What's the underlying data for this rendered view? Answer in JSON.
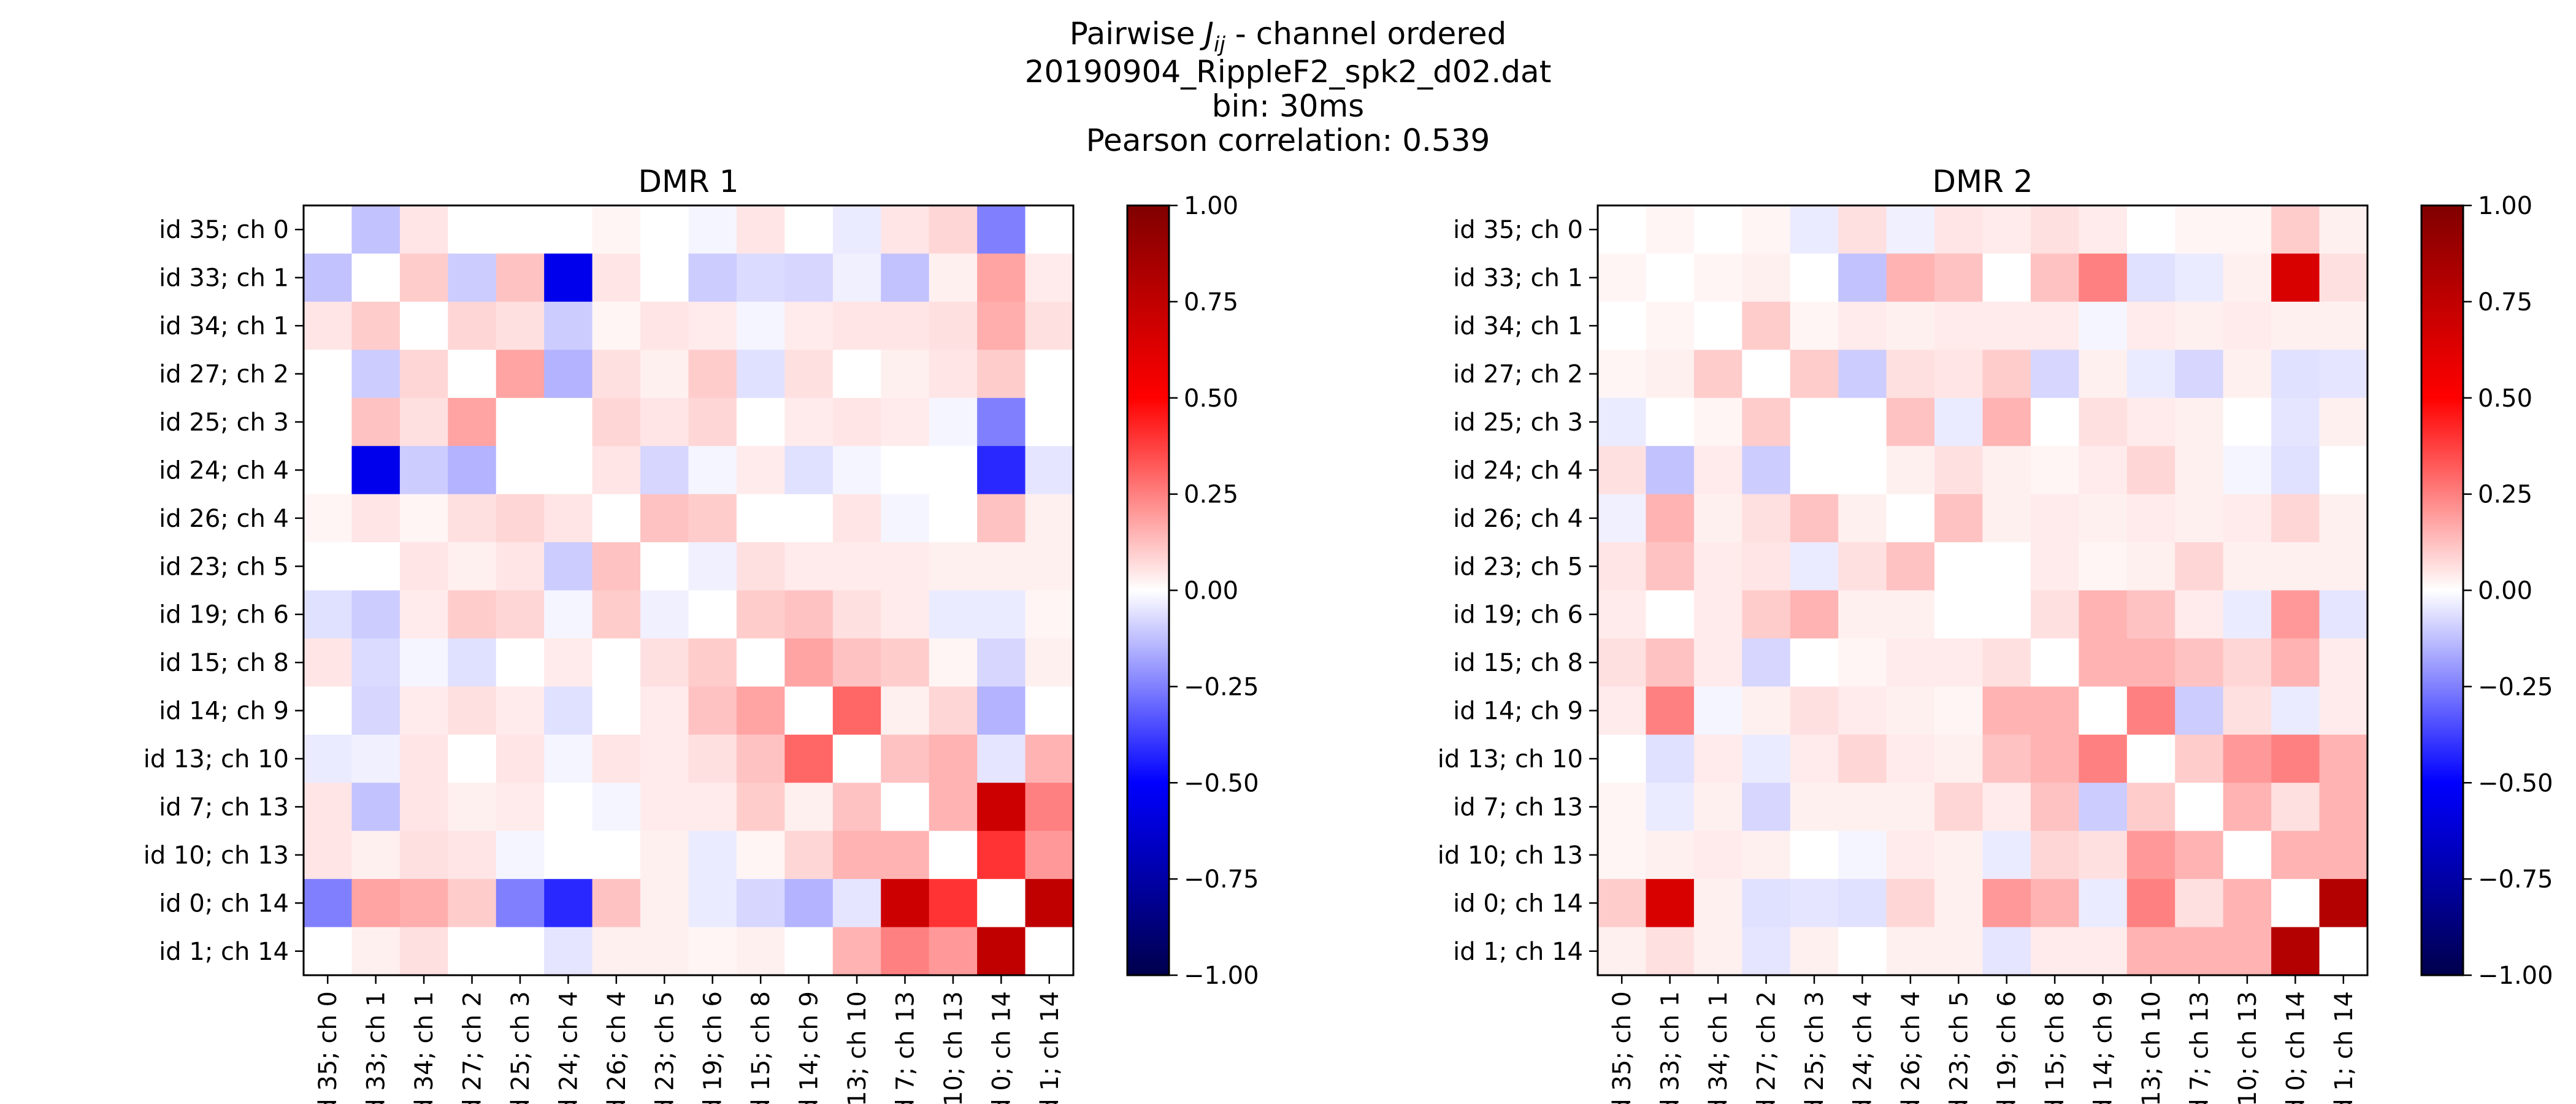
{
  "figure": {
    "title_prefix": "Pairwise ",
    "title_symbol": "J",
    "title_subscript": "ij",
    "title_suffix": " - channel ordered",
    "file": "20190904_RippleF2_spk2_d02.dat",
    "bin": "bin: 30ms",
    "pearson": "Pearson correlation: 0.539"
  },
  "colors": {
    "min": "#00004c",
    "low": "#0000ff",
    "mid": "#ffffff",
    "high": "#ff0000",
    "max": "#800000"
  },
  "chart_data": [
    {
      "type": "heatmap",
      "title": "DMR 1",
      "labels": [
        "id 35; ch 0",
        "id 33; ch 1",
        "id 34; ch 1",
        "id 27; ch 2",
        "id 25; ch 3",
        "id 24; ch 4",
        "id 26; ch 4",
        "id 23; ch 5",
        "id 19; ch 6",
        "id 15; ch 8",
        "id 14; ch 9",
        "id 13; ch 10",
        "id 7; ch 13",
        "id 10; ch 13",
        "id 0; ch 14",
        "id 1; ch 14"
      ],
      "value_range": [
        -1.0,
        1.0
      ],
      "colorbar_ticks": [
        "1.00",
        "0.75",
        "0.50",
        "0.25",
        "0.00",
        "−0.25",
        "−0.50",
        "−0.75",
        "−1.00"
      ],
      "matrix": [
        [
          0.0,
          -0.12,
          0.05,
          0.0,
          0.0,
          0.0,
          0.02,
          0.0,
          -0.02,
          0.05,
          0.0,
          -0.04,
          0.05,
          0.08,
          -0.25,
          0.0
        ],
        [
          -0.12,
          0.0,
          0.1,
          -0.1,
          0.12,
          -0.55,
          0.05,
          0.0,
          -0.1,
          -0.07,
          -0.08,
          -0.03,
          -0.12,
          0.03,
          0.18,
          0.04
        ],
        [
          0.05,
          0.1,
          0.0,
          0.08,
          0.06,
          -0.1,
          0.02,
          0.05,
          0.04,
          -0.02,
          0.04,
          0.05,
          0.05,
          0.06,
          0.16,
          0.06
        ],
        [
          0.0,
          -0.1,
          0.08,
          0.0,
          0.18,
          -0.15,
          0.06,
          0.03,
          0.1,
          -0.06,
          0.06,
          0.0,
          0.03,
          0.05,
          0.1,
          0.0
        ],
        [
          0.0,
          0.12,
          0.06,
          0.18,
          0.0,
          0.0,
          0.08,
          0.05,
          0.08,
          0.0,
          0.04,
          0.05,
          0.04,
          -0.02,
          -0.25,
          0.0
        ],
        [
          0.0,
          -0.55,
          -0.1,
          -0.15,
          0.0,
          0.0,
          0.05,
          -0.08,
          -0.02,
          0.04,
          -0.06,
          -0.02,
          0.0,
          0.0,
          -0.42,
          -0.05
        ],
        [
          0.02,
          0.05,
          0.02,
          0.06,
          0.08,
          0.05,
          0.0,
          0.12,
          0.1,
          0.0,
          0.0,
          0.05,
          -0.02,
          0.0,
          0.12,
          0.03
        ],
        [
          0.0,
          0.0,
          0.05,
          0.03,
          0.05,
          -0.1,
          0.12,
          0.0,
          -0.03,
          0.06,
          0.04,
          0.04,
          0.04,
          0.03,
          0.03,
          0.03
        ],
        [
          -0.06,
          -0.1,
          0.04,
          0.1,
          0.08,
          -0.02,
          0.1,
          -0.03,
          0.0,
          0.1,
          0.12,
          0.06,
          0.04,
          -0.04,
          -0.04,
          0.02
        ],
        [
          0.05,
          -0.07,
          -0.02,
          -0.06,
          0.0,
          0.04,
          0.0,
          0.06,
          0.1,
          0.0,
          0.18,
          0.12,
          0.1,
          0.02,
          -0.08,
          0.03
        ],
        [
          0.0,
          -0.08,
          0.04,
          0.06,
          0.04,
          -0.06,
          0.0,
          0.04,
          0.12,
          0.18,
          0.0,
          0.3,
          0.03,
          0.08,
          -0.15,
          0.0
        ],
        [
          -0.04,
          -0.03,
          0.05,
          0.0,
          0.05,
          -0.02,
          0.05,
          0.04,
          0.06,
          0.12,
          0.3,
          0.0,
          0.12,
          0.15,
          -0.05,
          0.15
        ],
        [
          0.05,
          -0.12,
          0.05,
          0.03,
          0.04,
          0.0,
          -0.02,
          0.04,
          0.04,
          0.1,
          0.03,
          0.12,
          0.0,
          0.15,
          0.7,
          0.25
        ],
        [
          0.05,
          0.03,
          0.06,
          0.05,
          -0.02,
          0.0,
          0.0,
          0.03,
          -0.04,
          0.02,
          0.08,
          0.15,
          0.15,
          0.0,
          0.4,
          0.2
        ],
        [
          -0.25,
          0.18,
          0.16,
          0.1,
          -0.25,
          -0.42,
          0.12,
          0.03,
          -0.04,
          -0.08,
          -0.15,
          -0.05,
          0.7,
          0.4,
          0.0,
          0.75
        ],
        [
          0.0,
          0.03,
          0.06,
          0.0,
          0.0,
          -0.05,
          0.03,
          0.03,
          0.02,
          0.03,
          0.0,
          0.15,
          0.25,
          0.2,
          0.75,
          0.0
        ]
      ]
    },
    {
      "type": "heatmap",
      "title": "DMR 2",
      "labels": [
        "id 35; ch 0",
        "id 33; ch 1",
        "id 34; ch 1",
        "id 27; ch 2",
        "id 25; ch 3",
        "id 24; ch 4",
        "id 26; ch 4",
        "id 23; ch 5",
        "id 19; ch 6",
        "id 15; ch 8",
        "id 14; ch 9",
        "id 13; ch 10",
        "id 7; ch 13",
        "id 10; ch 13",
        "id 0; ch 14",
        "id 1; ch 14"
      ],
      "value_range": [
        -1.0,
        1.0
      ],
      "colorbar_ticks": [
        "1.00",
        "0.75",
        "0.50",
        "0.25",
        "0.00",
        "−0.25",
        "−0.50",
        "−0.75",
        "−1.00"
      ],
      "matrix": [
        [
          0.0,
          0.02,
          0.0,
          0.02,
          -0.04,
          0.06,
          -0.03,
          0.05,
          0.04,
          0.06,
          0.04,
          0.0,
          0.02,
          0.02,
          0.1,
          0.03
        ],
        [
          0.02,
          0.0,
          0.02,
          0.03,
          0.0,
          -0.12,
          0.15,
          0.12,
          0.0,
          0.12,
          0.25,
          -0.06,
          -0.04,
          0.03,
          0.65,
          0.06
        ],
        [
          0.0,
          0.02,
          0.0,
          0.1,
          0.02,
          0.04,
          0.03,
          0.04,
          0.04,
          0.04,
          -0.02,
          0.04,
          0.03,
          0.04,
          0.03,
          0.03
        ],
        [
          0.02,
          0.03,
          0.1,
          0.0,
          0.1,
          -0.1,
          0.06,
          0.05,
          0.1,
          -0.08,
          0.03,
          -0.04,
          -0.08,
          0.03,
          -0.06,
          -0.05
        ],
        [
          -0.04,
          0.0,
          0.02,
          0.1,
          0.0,
          0.0,
          0.12,
          -0.04,
          0.15,
          0.0,
          0.06,
          0.04,
          0.03,
          0.0,
          -0.05,
          0.03
        ],
        [
          0.06,
          -0.12,
          0.04,
          -0.1,
          0.0,
          0.0,
          0.03,
          0.06,
          0.03,
          0.02,
          0.04,
          0.08,
          0.03,
          -0.02,
          -0.06,
          0.0
        ],
        [
          -0.03,
          0.15,
          0.03,
          0.06,
          0.12,
          0.03,
          0.0,
          0.12,
          0.03,
          0.04,
          0.03,
          0.04,
          0.03,
          0.04,
          0.08,
          0.03
        ],
        [
          0.05,
          0.12,
          0.04,
          0.05,
          -0.04,
          0.06,
          0.12,
          0.0,
          0.0,
          0.04,
          0.02,
          0.03,
          0.08,
          0.03,
          0.03,
          0.03
        ],
        [
          0.04,
          0.0,
          0.04,
          0.1,
          0.15,
          0.03,
          0.03,
          0.0,
          0.0,
          0.06,
          0.15,
          0.12,
          0.04,
          -0.04,
          0.2,
          -0.05
        ],
        [
          0.06,
          0.12,
          0.04,
          -0.08,
          0.0,
          0.02,
          0.04,
          0.04,
          0.06,
          0.0,
          0.15,
          0.15,
          0.12,
          0.08,
          0.15,
          0.04
        ],
        [
          0.04,
          0.25,
          -0.02,
          0.03,
          0.06,
          0.04,
          0.03,
          0.02,
          0.15,
          0.15,
          0.0,
          0.25,
          -0.1,
          0.06,
          -0.04,
          0.04
        ],
        [
          0.0,
          -0.06,
          0.04,
          -0.04,
          0.04,
          0.08,
          0.04,
          0.03,
          0.12,
          0.15,
          0.25,
          0.0,
          0.1,
          0.2,
          0.25,
          0.15
        ],
        [
          0.02,
          -0.04,
          0.03,
          -0.08,
          0.03,
          0.03,
          0.03,
          0.08,
          0.04,
          0.12,
          -0.1,
          0.1,
          0.0,
          0.15,
          0.06,
          0.15
        ],
        [
          0.02,
          0.03,
          0.04,
          0.03,
          0.0,
          -0.02,
          0.04,
          0.03,
          -0.04,
          0.08,
          0.06,
          0.2,
          0.15,
          0.0,
          0.15,
          0.15
        ],
        [
          0.1,
          0.65,
          0.03,
          -0.06,
          -0.05,
          -0.06,
          0.08,
          0.03,
          0.2,
          0.15,
          -0.04,
          0.25,
          0.06,
          0.15,
          0.0,
          0.8
        ],
        [
          0.03,
          0.06,
          0.03,
          -0.05,
          0.03,
          0.0,
          0.03,
          0.03,
          -0.05,
          0.04,
          0.04,
          0.15,
          0.15,
          0.15,
          0.8,
          0.0
        ]
      ]
    }
  ]
}
